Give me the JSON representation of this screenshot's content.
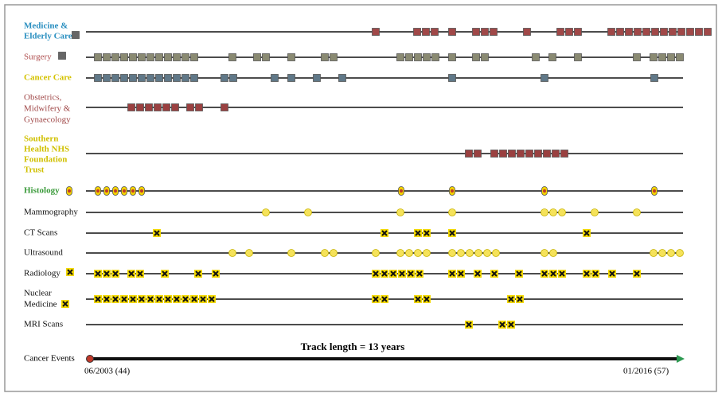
{
  "rows": [
    {
      "label": [
        "Medicine &",
        "Elderly Care"
      ]
    },
    {
      "label": [
        "Surgery"
      ]
    },
    {
      "label": [
        "Cancer Care"
      ]
    },
    {
      "label": [
        "Obstetrics,",
        "Midwifery &",
        "Gynaecology"
      ]
    },
    {
      "label": [
        "Southern",
        "Health NHS",
        "Foundation",
        "Trust"
      ]
    },
    {
      "label": [
        "Histology"
      ]
    },
    {
      "label": [
        "Mammography"
      ]
    },
    {
      "label": [
        "CT Scans"
      ]
    },
    {
      "label": [
        "Ultrasound"
      ]
    },
    {
      "label": [
        "Radiology"
      ]
    },
    {
      "label": [
        "Nuclear",
        "Medicine"
      ]
    },
    {
      "label": [
        "MRI Scans"
      ]
    }
  ],
  "track": {
    "label": "Cancer Events",
    "length": "Track length = 13 years",
    "start": "06/2003 (44)",
    "end": "01/2016 (57)"
  }
}
